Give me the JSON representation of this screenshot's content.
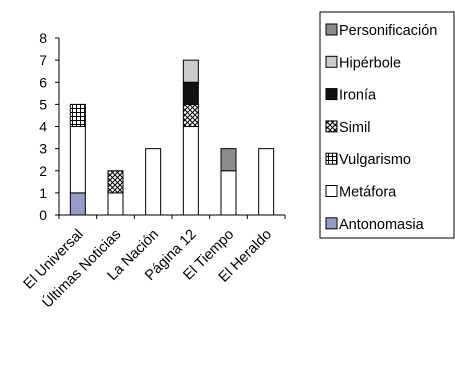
{
  "chart_data": {
    "type": "bar",
    "stacked": true,
    "categories": [
      "El Universal",
      "Últimas Noticias",
      "La Nación",
      "Página 12",
      "El Tiempo",
      "El Heraldo"
    ],
    "ylim": [
      0,
      8
    ],
    "yticks": [
      0,
      1,
      2,
      3,
      4,
      5,
      6,
      7,
      8
    ],
    "series": [
      {
        "name": "Antonomasia",
        "values": [
          1,
          0,
          0,
          0,
          0,
          0
        ],
        "color": "#9a9ac8",
        "pattern": "solid"
      },
      {
        "name": "Metáfora",
        "values": [
          3,
          1,
          3,
          4,
          2,
          3
        ],
        "color": "#ffffff",
        "pattern": "solid"
      },
      {
        "name": "Vulgarismo",
        "values": [
          1,
          0,
          0,
          0,
          0,
          0
        ],
        "color": "#ffffff",
        "pattern": "grid"
      },
      {
        "name": "Simil",
        "values": [
          0,
          1,
          0,
          1,
          0,
          0
        ],
        "color": "#ffffff",
        "pattern": "cross"
      },
      {
        "name": "Ironía",
        "values": [
          0,
          0,
          0,
          1,
          0,
          0
        ],
        "color": "#111111",
        "pattern": "solid"
      },
      {
        "name": "Hipérbole",
        "values": [
          0,
          0,
          0,
          1,
          0,
          0
        ],
        "color": "#cccccc",
        "pattern": "solid"
      },
      {
        "name": "Personificación",
        "values": [
          0,
          0,
          0,
          0,
          1,
          0
        ],
        "color": "#8c8c8c",
        "pattern": "solid"
      }
    ],
    "legend": {
      "position": "right",
      "order": [
        "Personificación",
        "Hipérbole",
        "Ironía",
        "Simil",
        "Vulgarismo",
        "Metáfora",
        "Antonomasia"
      ]
    },
    "grid": false
  }
}
